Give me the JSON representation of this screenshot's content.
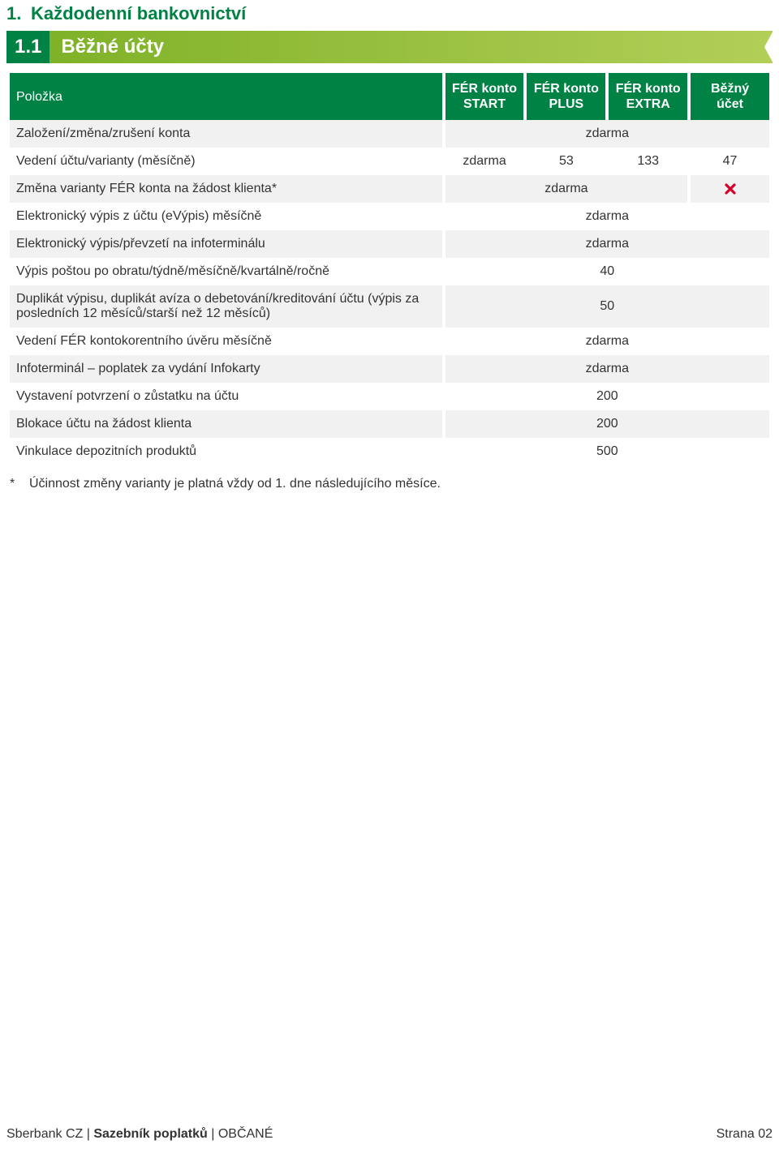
{
  "colors": {
    "brand_green": "#008244",
    "gradient_from": "#7fb228",
    "gradient_to": "#b2cf58",
    "row_alt_bg": "#f1f1f1",
    "text": "#333333",
    "x_red": "#d3002c"
  },
  "section": {
    "number": "1.",
    "title": "Každodenní bankovnictví"
  },
  "subsection": {
    "number": "1.1",
    "title": "Běžné účty"
  },
  "table": {
    "header_label": "Položka",
    "columns": [
      {
        "line1": "FÉR konto",
        "line2": "START"
      },
      {
        "line1": "FÉR konto",
        "line2": "PLUS"
      },
      {
        "line1": "FÉR konto",
        "line2": "EXTRA"
      },
      {
        "line1": "Běžný účet",
        "line2": ""
      }
    ],
    "rows": [
      {
        "label": "Založení/změna/zrušení konta",
        "span": 4,
        "value": "zdarma"
      },
      {
        "label": "Vedení účtu/varianty (měsíčně)",
        "cells": [
          "zdarma",
          "53",
          "133",
          "47"
        ]
      },
      {
        "label": "Změna varianty FÉR konta na žádost klienta*",
        "span3": "zdarma",
        "last_icon": "x"
      },
      {
        "label": "Elektronický výpis z účtu (eVýpis) měsíčně",
        "span": 4,
        "value": "zdarma"
      },
      {
        "label": "Elektronický výpis/převzetí na infoterminálu",
        "span": 4,
        "value": "zdarma"
      },
      {
        "label": "Výpis poštou po obratu/týdně/měsíčně/kvartálně/ročně",
        "span": 4,
        "value": "40"
      },
      {
        "label": "Duplikát výpisu, duplikát avíza o debetování/kreditování účtu (výpis za posledních 12 měsíců/starší než 12 měsíců)",
        "span": 4,
        "value": "50"
      },
      {
        "label": "Vedení FÉR kontokorentního úvěru měsíčně",
        "span": 4,
        "value": "zdarma"
      },
      {
        "label": "Infoterminál – poplatek za vydání Infokarty",
        "span": 4,
        "value": "zdarma"
      },
      {
        "label": "Vystavení potvrzení o zůstatku na účtu",
        "span": 4,
        "value": "200"
      },
      {
        "label": "Blokace účtu na žádost klienta",
        "span": 4,
        "value": "200"
      },
      {
        "label": "Vinkulace depozitních produktů",
        "span": 4,
        "value": "500"
      }
    ]
  },
  "footnote": {
    "marker": "*",
    "text": "Účinnost změny varianty je platná vždy od 1. dne následujícího měsíce."
  },
  "footer": {
    "brand": "Sberbank CZ",
    "sep": " | ",
    "doc": "Sazebník poplatků",
    "aud": "OBČANÉ",
    "page": "Strana 02"
  }
}
